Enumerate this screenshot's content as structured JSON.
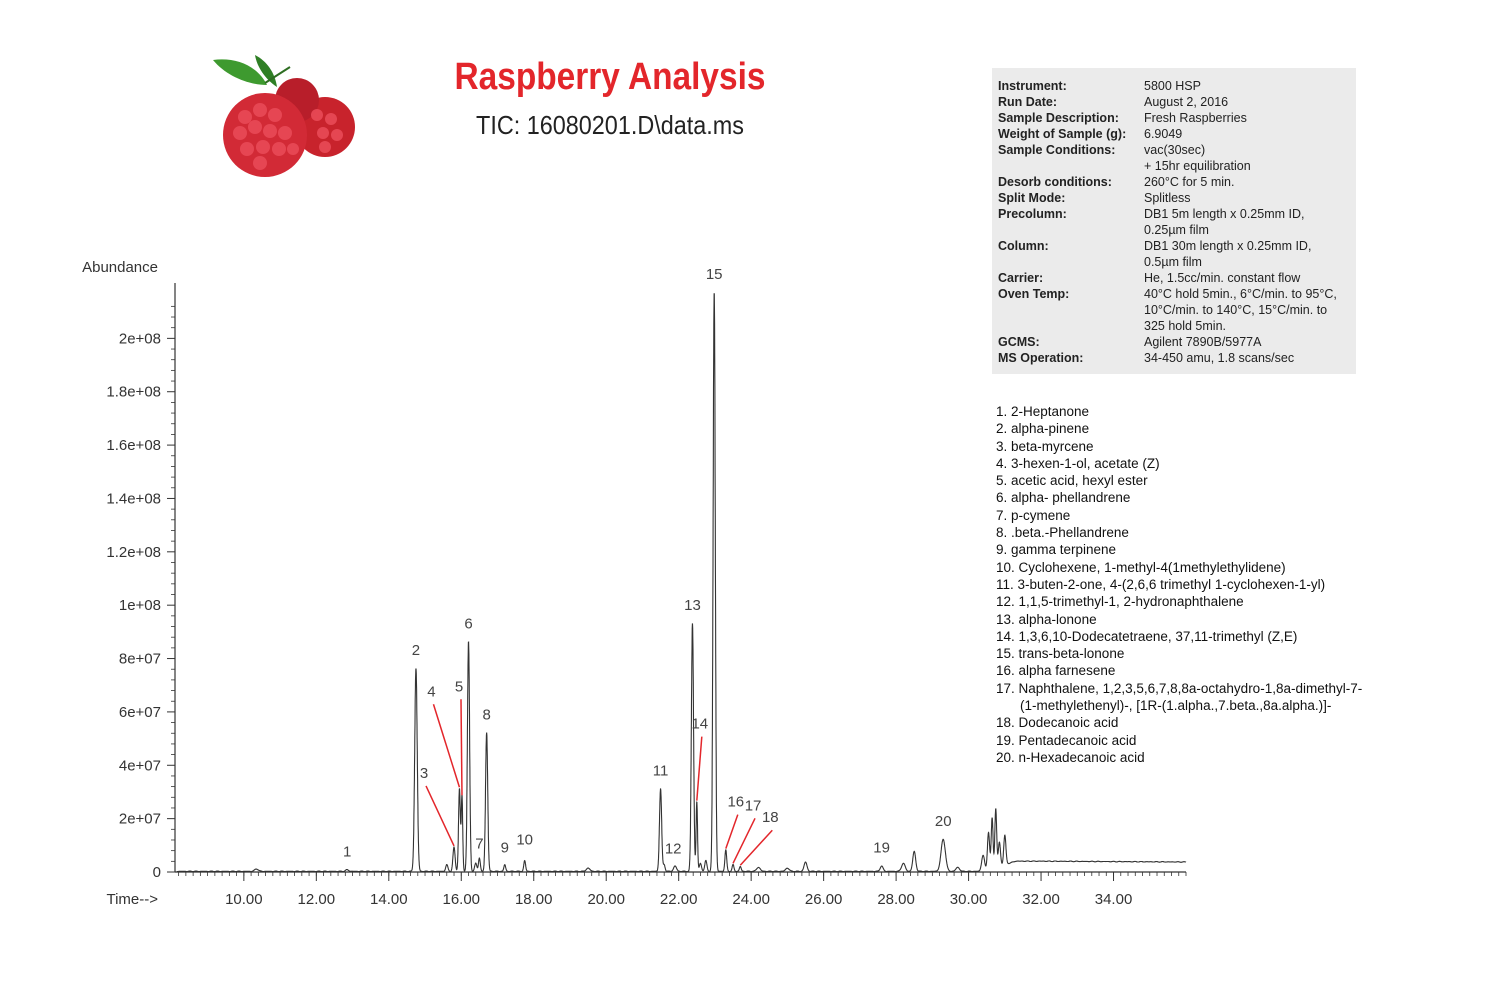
{
  "header": {
    "title": "Raspberry Analysis",
    "subtitle": "TIC: 16080201.D\\data.ms"
  },
  "info": [
    {
      "key": "Instrument:",
      "value": [
        "5800 HSP"
      ]
    },
    {
      "key": "Run Date:",
      "value": [
        "August 2, 2016"
      ]
    },
    {
      "key": "Sample Description:",
      "value": [
        "Fresh Raspberries"
      ]
    },
    {
      "key": "Weight of Sample (g):",
      "value": [
        "6.9049"
      ]
    },
    {
      "key": "Sample Conditions:",
      "value": [
        "vac(30sec)",
        "+ 15hr equilibration"
      ]
    },
    {
      "key": "Desorb conditions:",
      "value": [
        "260°C for 5 min."
      ]
    },
    {
      "key": "Split Mode:",
      "value": [
        "Splitless"
      ]
    },
    {
      "key": "Precolumn:",
      "value": [
        "DB1 5m length x 0.25mm ID,",
        "0.25µm film"
      ]
    },
    {
      "key": "Column:",
      "value": [
        "DB1 30m length x 0.25mm ID,",
        "0.5µm film"
      ]
    },
    {
      "key": "Carrier:",
      "value": [
        "He, 1.5cc/min. constant flow"
      ]
    },
    {
      "key": "Oven Temp:",
      "value": [
        "40°C hold 5min., 6°C/min. to 95°C,",
        "10°C/min. to 140°C, 15°C/min. to",
        "325 hold 5min."
      ]
    },
    {
      "key": "GCMS:",
      "value": [
        "Agilent 7890B/5977A"
      ]
    },
    {
      "key": "MS Operation:",
      "value": [
        "34-450 amu, 1.8 scans/sec"
      ]
    }
  ],
  "compounds": [
    [
      "1. 2-Heptanone"
    ],
    [
      "2. alpha-pinene"
    ],
    [
      "3. beta-myrcene"
    ],
    [
      "4. 3-hexen-1-ol, acetate (Z)"
    ],
    [
      "5. acetic acid, hexyl ester"
    ],
    [
      "6. alpha- phellandrene"
    ],
    [
      "7. p-cymene"
    ],
    [
      "8. .beta.-Phellandrene"
    ],
    [
      "9. gamma terpinene"
    ],
    [
      "10. Cyclohexene, 1-methyl-4(1methylethylidene)"
    ],
    [
      "11. 3-buten-2-one, 4-(2,6,6 trimethyl 1-cyclohexen-1-yl)"
    ],
    [
      "12. 1,1,5-trimethyl-1, 2-hydronaphthalene"
    ],
    [
      "13. alpha-lonone"
    ],
    [
      "14. 1,3,6,10-Dodecatetraene, 37,11-trimethyl (Z,E)"
    ],
    [
      "15. trans-beta-lonone"
    ],
    [
      "16. alpha farnesene"
    ],
    [
      "17. Naphthalene, 1,2,3,5,6,7,8,8a-octahydro-1,8a-dimethyl-7-",
      "(1-methylethenyl)-, [1R-(1.alpha.,7.beta.,8a.alpha.)]-"
    ],
    [
      "18. Dodecanoic acid"
    ],
    [
      "19. Pentadecanoic acid"
    ],
    [
      "20. n-Hexadecanoic acid"
    ]
  ],
  "colors": {
    "title": "#e3262b",
    "trace": "#333333",
    "pointer": "#e3262b",
    "info_bg": "#ebebeb"
  },
  "chart_data": {
    "type": "line",
    "ylabel": "Abundance",
    "xlabel": "Time-->",
    "xlim": [
      8.1,
      36.0
    ],
    "ylim": [
      0,
      220000000
    ],
    "x_ticks": [
      10,
      12,
      14,
      16,
      18,
      20,
      22,
      24,
      26,
      28,
      30,
      32,
      34
    ],
    "x_tick_labels": [
      "10.00",
      "12.00",
      "14.00",
      "16.00",
      "18.00",
      "20.00",
      "22.00",
      "24.00",
      "26.00",
      "28.00",
      "30.00",
      "32.00",
      "34.00"
    ],
    "y_ticks": [
      0,
      20000000,
      40000000,
      60000000,
      80000000,
      100000000,
      120000000,
      140000000,
      160000000,
      180000000,
      200000000
    ],
    "y_tick_labels": [
      "0",
      "2e+07",
      "4e+07",
      "6e+07",
      "8e+07",
      "1e+08",
      "1.2e+08",
      "1.4e+08",
      "1.6e+08",
      "1.8e+08",
      "2e+08"
    ],
    "grid": false,
    "peaks": [
      {
        "label": "1",
        "time": 12.85,
        "height": 600000,
        "width": 0.04
      },
      {
        "label": "2",
        "time": 14.75,
        "height": 76000000,
        "width": 0.035
      },
      {
        "label": "3",
        "time": 15.8,
        "height": 9000000,
        "width": 0.03
      },
      {
        "label": "4",
        "time": 15.95,
        "height": 31000000,
        "width": 0.025
      },
      {
        "label": "5",
        "time": 16.02,
        "height": 28000000,
        "width": 0.02
      },
      {
        "label": "6",
        "time": 16.2,
        "height": 86000000,
        "width": 0.03
      },
      {
        "label": "7",
        "time": 16.5,
        "height": 5000000,
        "width": 0.025
      },
      {
        "label": "8",
        "time": 16.7,
        "height": 52000000,
        "width": 0.03
      },
      {
        "label": "9",
        "time": 17.2,
        "height": 2500000,
        "width": 0.025
      },
      {
        "label": "10",
        "time": 17.75,
        "height": 4000000,
        "width": 0.025
      },
      {
        "label": "11",
        "time": 21.5,
        "height": 31000000,
        "width": 0.03
      },
      {
        "label": "12",
        "time": 21.6,
        "height": 2500000,
        "width": 0.025
      },
      {
        "label": "13",
        "time": 22.38,
        "height": 93000000,
        "width": 0.03
      },
      {
        "label": "14",
        "time": 22.5,
        "height": 26000000,
        "width": 0.02
      },
      {
        "label": "15",
        "time": 22.98,
        "height": 217000000,
        "width": 0.03
      },
      {
        "label": "16",
        "time": 23.3,
        "height": 8000000,
        "width": 0.025
      },
      {
        "label": "17",
        "time": 23.5,
        "height": 2500000,
        "width": 0.025
      },
      {
        "label": "18",
        "time": 23.7,
        "height": 1800000,
        "width": 0.025
      },
      {
        "label": "19",
        "time": 27.6,
        "height": 2000000,
        "width": 0.04
      },
      {
        "label": "20",
        "time": 29.3,
        "height": 12000000,
        "width": 0.06
      }
    ],
    "minor_peaks": [
      {
        "time": 10.35,
        "height": 900000,
        "width": 0.05
      },
      {
        "time": 15.6,
        "height": 2500000,
        "width": 0.03
      },
      {
        "time": 16.4,
        "height": 3000000,
        "width": 0.03
      },
      {
        "time": 19.5,
        "height": 1200000,
        "width": 0.05
      },
      {
        "time": 21.9,
        "height": 2000000,
        "width": 0.04
      },
      {
        "time": 22.6,
        "height": 3000000,
        "width": 0.03
      },
      {
        "time": 22.75,
        "height": 4000000,
        "width": 0.03
      },
      {
        "time": 24.2,
        "height": 1500000,
        "width": 0.05
      },
      {
        "time": 25.0,
        "height": 1200000,
        "width": 0.05
      },
      {
        "time": 25.5,
        "height": 3500000,
        "width": 0.04
      },
      {
        "time": 28.2,
        "height": 3000000,
        "width": 0.05
      },
      {
        "time": 28.5,
        "height": 7500000,
        "width": 0.04
      },
      {
        "time": 29.7,
        "height": 1500000,
        "width": 0.05
      },
      {
        "time": 30.4,
        "height": 6000000,
        "width": 0.04
      },
      {
        "time": 30.55,
        "height": 14000000,
        "width": 0.03
      },
      {
        "time": 30.65,
        "height": 19000000,
        "width": 0.025
      },
      {
        "time": 30.75,
        "height": 22000000,
        "width": 0.025
      },
      {
        "time": 30.85,
        "height": 9000000,
        "width": 0.03
      },
      {
        "time": 31.0,
        "height": 11000000,
        "width": 0.03
      }
    ],
    "hump": {
      "start": 30.4,
      "end": 36.0,
      "level": 3800000
    }
  }
}
